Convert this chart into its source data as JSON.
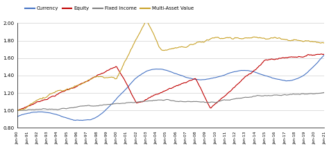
{
  "title": "",
  "legend_labels": [
    "Currency",
    "Equity",
    "Fixed Income",
    "Multi-Asset Value"
  ],
  "line_colors": [
    "#4472c4",
    "#c00000",
    "#7f7f7f",
    "#c9a227"
  ],
  "x_start_year": 1990,
  "x_end_year": 2021,
  "ylim": [
    0.8,
    2.0
  ],
  "yticks": [
    0.8,
    1.0,
    1.2,
    1.4,
    1.6,
    1.8,
    2.0
  ],
  "x_tick_labels": [
    "Jan-90",
    "Jan-91",
    "Jan-92",
    "Jan-93",
    "Jan-94",
    "Jan-95",
    "Jan-96",
    "Jan-97",
    "Jan-98",
    "Jan-99",
    "Jan-00",
    "Jan-01",
    "Jan-02",
    "Jan-03",
    "Jan-04",
    "Jan-05",
    "Jan-06",
    "Jan-07",
    "Jan-08",
    "Jan-09",
    "Jan-10",
    "Jan-11",
    "Jan-12",
    "Jan-13",
    "Jan-14",
    "Jan-15",
    "Jan-16",
    "Jan-17",
    "Jan-18",
    "Jan-19",
    "Jan-20",
    "Jan-21"
  ],
  "background_color": "#ffffff",
  "grid_color": "#d0d0d0"
}
